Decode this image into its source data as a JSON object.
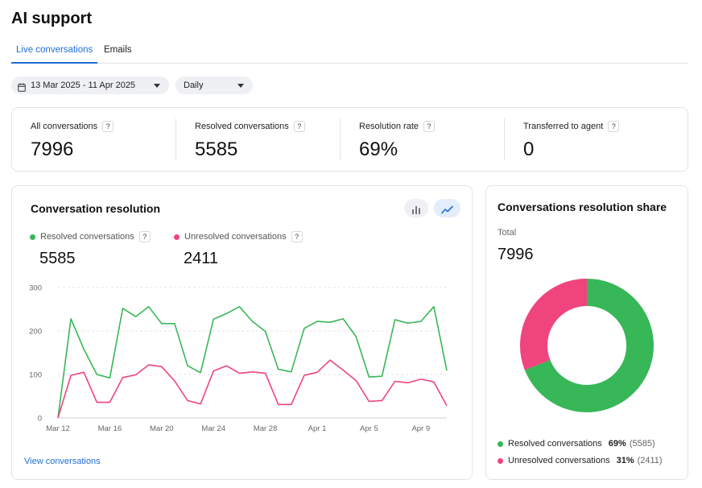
{
  "page": {
    "title": "AI support"
  },
  "tabs": [
    {
      "label": "Live conversations",
      "active": true
    },
    {
      "label": "Emails",
      "active": false
    }
  ],
  "filters": {
    "date_range": "13 Mar 2025 - 11 Apr 2025",
    "interval": "Daily"
  },
  "stats": [
    {
      "label": "All conversations",
      "value": "7996"
    },
    {
      "label": "Resolved conversations",
      "value": "5585"
    },
    {
      "label": "Resolution rate",
      "value": "69%"
    },
    {
      "label": "Transferred to agent",
      "value": "0"
    }
  ],
  "help_glyph": "?",
  "resolution_card": {
    "title": "Conversation resolution",
    "link": "View conversations",
    "bar_view_icon": "bar-chart-icon",
    "line_view_icon": "line-chart-icon",
    "active_view": "line"
  },
  "share_card": {
    "title": "Conversations resolution share",
    "total_label": "Total",
    "total_value": "7996",
    "items": [
      {
        "label": "Resolved conversations",
        "percent": "69%",
        "count": "(5585)",
        "color": "#37b758",
        "share": 0.69
      },
      {
        "label": "Unresolved conversations",
        "percent": "31%",
        "count": "(2411)",
        "color": "#f0447d",
        "share": 0.31
      }
    ]
  },
  "chart_data": {
    "type": "line",
    "y_ticks": [
      "0",
      "100",
      "200",
      "300"
    ],
    "ylim": [
      0,
      300
    ],
    "x_tick_labels": [
      "Mar 12",
      "Mar 16",
      "Mar 20",
      "Mar 24",
      "Mar 28",
      "Apr 1",
      "Apr 5",
      "Apr 9"
    ],
    "x_tick_index": [
      0,
      4,
      8,
      12,
      16,
      20,
      24,
      28
    ],
    "grid": true,
    "series": [
      {
        "name": "Resolved conversations",
        "total": "5585",
        "color": "#37b758",
        "values": [
          0,
          228,
          158,
          100,
          92,
          252,
          233,
          256,
          217,
          217,
          120,
          104,
          227,
          240,
          256,
          222,
          199,
          112,
          106,
          206,
          222,
          220,
          228,
          187,
          94,
          96,
          226,
          218,
          222,
          256,
          109
        ]
      },
      {
        "name": "Unresolved conversations",
        "total": "2411",
        "color": "#f0447d",
        "values": [
          0,
          98,
          105,
          36,
          36,
          93,
          99,
          122,
          118,
          85,
          40,
          32,
          108,
          120,
          103,
          106,
          103,
          31,
          31,
          98,
          105,
          133,
          110,
          86,
          38,
          40,
          84,
          81,
          89,
          83,
          28
        ]
      }
    ]
  }
}
